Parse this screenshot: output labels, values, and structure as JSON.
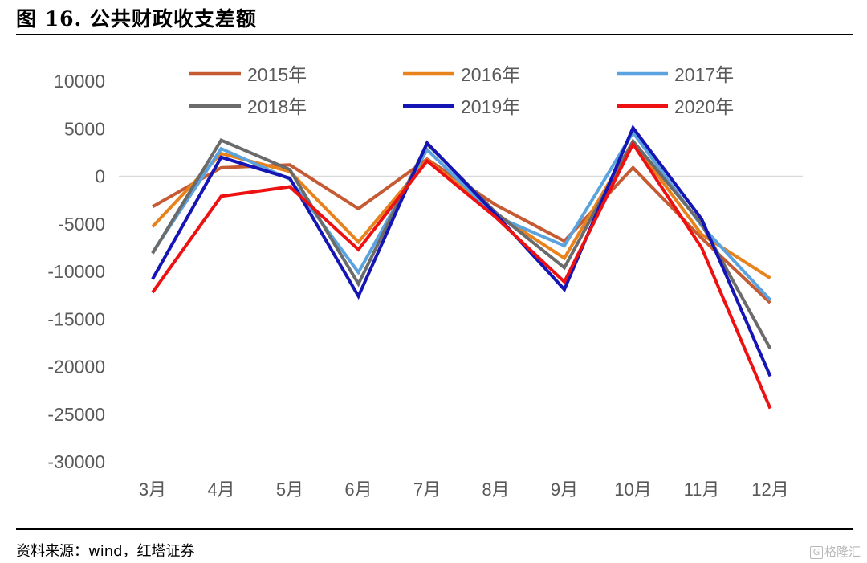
{
  "figure": {
    "title": "图 16. 公共财政收支差额",
    "source": "资料来源：wind，红塔证券",
    "watermark_text": "格隆汇"
  },
  "chart_data": {
    "type": "line",
    "title": "公共财政收支差额",
    "xlabel": "",
    "ylabel": "",
    "categories": [
      "3月",
      "4月",
      "5月",
      "6月",
      "7月",
      "8月",
      "9月",
      "10月",
      "11月",
      "12月"
    ],
    "ylim": [
      -30000,
      10000
    ],
    "yticks": [
      10000,
      5000,
      0,
      -5000,
      -10000,
      -15000,
      -20000,
      -25000,
      -30000
    ],
    "grid": false,
    "zero_line": true,
    "legend": "top",
    "series": [
      {
        "name": "2015年",
        "color": "#C55A33",
        "values": [
          -3200,
          900,
          1200,
          -3400,
          1800,
          -3000,
          -6800,
          900,
          -6500,
          -13300
        ]
      },
      {
        "name": "2016年",
        "color": "#E8821D",
        "values": [
          -5300,
          2400,
          500,
          -6900,
          1700,
          -3900,
          -8600,
          3600,
          -6100,
          -10700
        ]
      },
      {
        "name": "2017年",
        "color": "#5BA3DF",
        "values": [
          -8000,
          2900,
          -300,
          -10100,
          2800,
          -4200,
          -7300,
          4600,
          -5200,
          -13000
        ]
      },
      {
        "name": "2018年",
        "color": "#6B6B6B",
        "values": [
          -8100,
          3800,
          700,
          -11300,
          3400,
          -3800,
          -9600,
          3700,
          -5000,
          -18100
        ]
      },
      {
        "name": "2019年",
        "color": "#1515B5",
        "values": [
          -10800,
          2000,
          -200,
          -12600,
          3500,
          -4000,
          -11900,
          5100,
          -4500,
          -21000
        ]
      },
      {
        "name": "2020年",
        "color": "#EE1111",
        "values": [
          -12200,
          -2100,
          -1100,
          -7700,
          1600,
          -4300,
          -11100,
          3400,
          -7500,
          -24400
        ]
      }
    ]
  }
}
